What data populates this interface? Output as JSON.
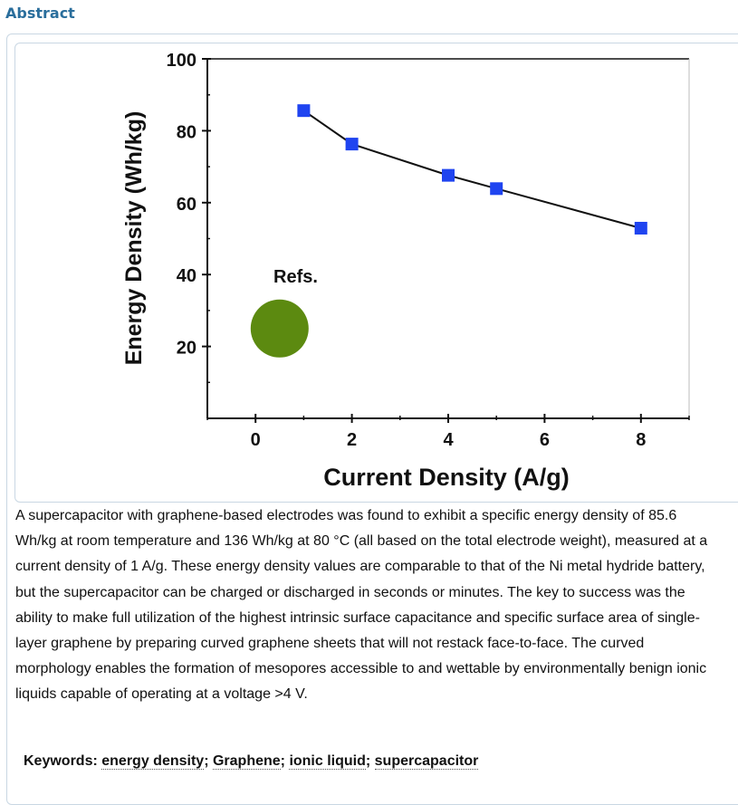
{
  "section": {
    "title": "Abstract"
  },
  "chart_data": {
    "type": "line",
    "xlabel": "Current Density (A/g)",
    "ylabel": "Energy Density (Wh/kg)",
    "xlim": [
      -1,
      9
    ],
    "ylim": [
      0,
      100
    ],
    "x_ticks": [
      0,
      2,
      4,
      6,
      8
    ],
    "y_ticks": [
      20,
      40,
      60,
      80,
      100
    ],
    "grid": false,
    "series": [
      {
        "x": [
          1,
          2,
          4,
          5,
          8
        ],
        "y": [
          85.6,
          76.3,
          67.6,
          63.9,
          52.9
        ],
        "color": "#1f44f0",
        "marker": "square"
      }
    ],
    "reference": {
      "label": "Refs.",
      "x": 0.5,
      "y": 25,
      "color": "#5c8a10"
    }
  },
  "abstract": {
    "text": "A supercapacitor with graphene-based electrodes was found to exhibit a specific energy density of 85.6 Wh/kg at room temperature and 136 Wh/kg at 80 °C (all based on the total electrode weight), measured at a current density of 1 A/g. These energy density values are comparable to that of the Ni metal hydride battery, but the supercapacitor can be charged or discharged in seconds or minutes. The key to success was the ability to make full utilization of the highest intrinsic surface capacitance and specific surface area of single-layer graphene by preparing curved graphene sheets that will not restack face-to-face. The curved morphology enables the formation of mesopores accessible to and wettable by environmentally benign ionic liquids capable of operating at a voltage >4 V."
  },
  "keywords": {
    "label": "Keywords: ",
    "items": [
      "energy density",
      "Graphene",
      "ionic liquid",
      "supercapacitor"
    ],
    "separator": "; "
  }
}
